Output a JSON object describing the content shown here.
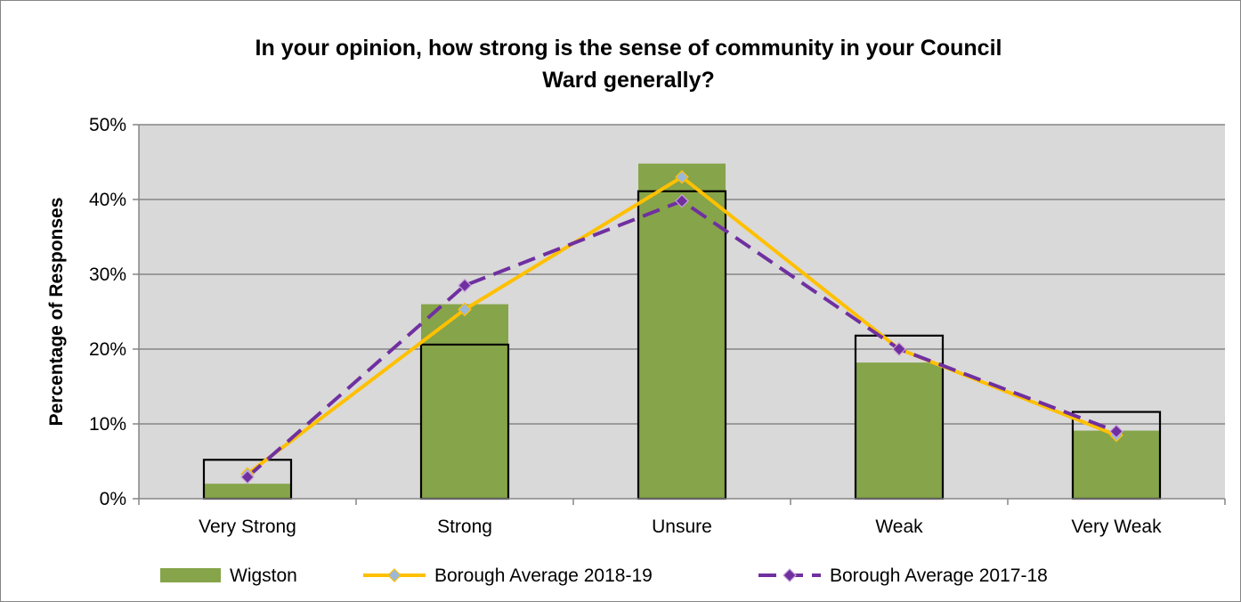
{
  "chart_data": {
    "type": "bar",
    "title_lines": [
      "In your opinion, how strong is the sense of community in your Council",
      "Ward generally?"
    ],
    "ylabel": "Percentage of Responses",
    "xlabel": "",
    "categories": [
      "Very Strong",
      "Strong",
      "Unsure",
      "Weak",
      "Very Weak"
    ],
    "ylim": [
      0,
      50
    ],
    "yticks": [
      "0%",
      "10%",
      "20%",
      "30%",
      "40%",
      "50%"
    ],
    "grid": true,
    "legend_position": "bottom",
    "series": [
      {
        "name": "Wigston",
        "kind": "bar",
        "color": "#86A44A",
        "values": [
          2.0,
          26.0,
          44.8,
          18.2,
          9.1
        ]
      },
      {
        "name": "",
        "kind": "outline-bar",
        "color": "#000000",
        "values": [
          5.2,
          20.6,
          41.1,
          21.8,
          11.6
        ]
      },
      {
        "name": "Borough Average 2018-19",
        "kind": "line",
        "color": "#FFC000",
        "marker_color": "#9DB8D6",
        "values": [
          3.3,
          25.3,
          43.0,
          20.0,
          8.5
        ]
      },
      {
        "name": "Borough Average 2017-18",
        "kind": "dashed-line",
        "color": "#7030A0",
        "marker_color": "#7030A0",
        "values": [
          2.9,
          28.5,
          39.8,
          20.0,
          9.0
        ]
      }
    ]
  },
  "colors": {
    "plot_background": "#D9D9D9",
    "gridline": "#868686",
    "frame": "#868686"
  }
}
